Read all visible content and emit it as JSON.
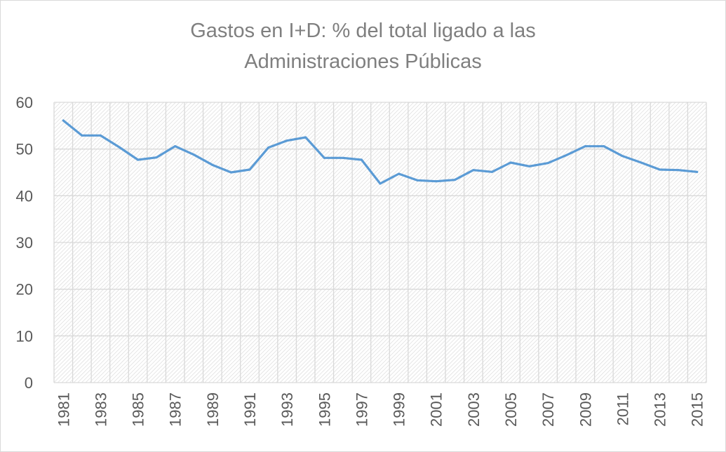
{
  "chart_data": {
    "type": "line",
    "title_lines": [
      "Gastos en I+D: % del total ligado a las",
      "Administraciones Públicas"
    ],
    "xlabel": "",
    "ylabel": "",
    "x": [
      1981,
      1982,
      1983,
      1984,
      1985,
      1986,
      1987,
      1988,
      1989,
      1990,
      1991,
      1992,
      1993,
      1994,
      1995,
      1996,
      1997,
      1998,
      1999,
      2000,
      2001,
      2002,
      2003,
      2004,
      2005,
      2006,
      2007,
      2008,
      2009,
      2010,
      2011,
      2012,
      2013,
      2014,
      2015
    ],
    "x_tick_labels": [
      "1981",
      "1983",
      "1985",
      "1987",
      "1989",
      "1991",
      "1993",
      "1995",
      "1997",
      "1999",
      "2001",
      "2003",
      "2005",
      "2007",
      "2009",
      "2011",
      "2013",
      "2015"
    ],
    "series": [
      {
        "values": [
          56.1,
          52.9,
          52.9,
          50.4,
          47.7,
          48.2,
          50.6,
          48.8,
          46.6,
          45.0,
          45.6,
          50.3,
          51.8,
          52.5,
          48.1,
          48.1,
          47.7,
          42.6,
          44.7,
          43.3,
          43.1,
          43.4,
          45.5,
          45.1,
          47.1,
          46.3,
          47.0,
          48.7,
          50.6,
          50.6,
          48.5,
          47.1,
          45.6,
          45.5,
          45.1
        ],
        "color": "#5b9bd5"
      }
    ],
    "ylim": [
      0,
      60
    ],
    "y_ticks": [
      "0",
      "10",
      "20",
      "30",
      "40",
      "50",
      "60"
    ],
    "grid": "horizontal and vertical",
    "legend": "none",
    "plot_background": "diagonal hatch"
  }
}
